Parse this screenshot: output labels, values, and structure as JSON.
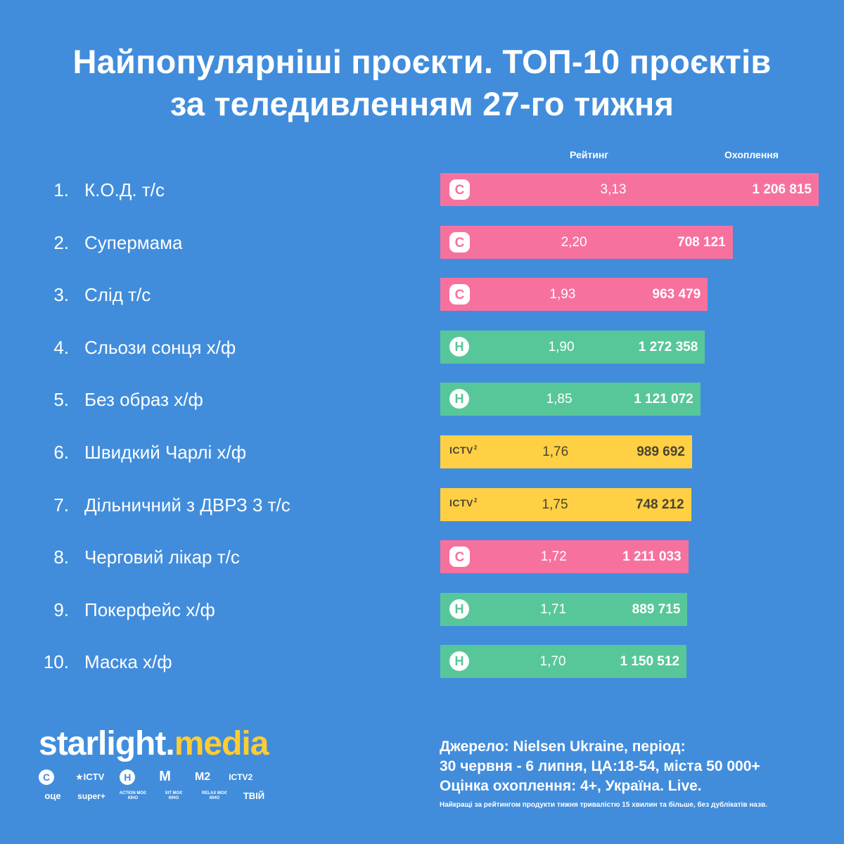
{
  "title": {
    "line1": "Найпопулярніші проєкти. ТОП-10 проєктів",
    "line2": "за теледивленням 27-го тижня"
  },
  "headers": {
    "rating": "Рейтинг",
    "reach": "Охоплення"
  },
  "colors": {
    "background": "#418ddc",
    "channel_c": "#f7719f",
    "channel_h": "#57c79a",
    "channel_ictv2": "#ffd044"
  },
  "chart_data": {
    "type": "bar",
    "orientation": "horizontal",
    "categories": [
      "К.О.Д. т/с",
      "Супермама",
      "Слід т/с",
      "Сльози сонця х/ф",
      "Без образ х/ф",
      "Швидкий Чарлі х/ф",
      "Дільничний з ДВРЗ 3 т/с",
      "Черговий лікар т/с",
      "Покерфейс х/ф",
      "Маска х/ф"
    ],
    "ranks": [
      "1.",
      "2.",
      "3.",
      "4.",
      "5.",
      "6.",
      "7.",
      "8.",
      "9.",
      "10."
    ],
    "series": [
      {
        "name": "Рейтинг",
        "values": [
          3.13,
          2.2,
          1.93,
          1.9,
          1.85,
          1.76,
          1.75,
          1.72,
          1.71,
          1.7
        ],
        "labels": [
          "3,13",
          "2,20",
          "1,93",
          "1,90",
          "1,85",
          "1,76",
          "1,75",
          "1,72",
          "1,71",
          "1,70"
        ]
      },
      {
        "name": "Охоплення",
        "values": [
          1206815,
          708121,
          963479,
          1272358,
          1121072,
          989692,
          748212,
          1211033,
          889715,
          1150512
        ],
        "labels": [
          "1 206 815",
          "708 121",
          "963 479",
          "1 272 358",
          "1 121 072",
          "989 692",
          "748 212",
          "1 211 033",
          "889 715",
          "1 150 512"
        ]
      }
    ],
    "channels": [
      "С",
      "С",
      "С",
      "Н",
      "Н",
      "ICTV2",
      "ICTV2",
      "С",
      "Н",
      "Н"
    ],
    "ylabel": "",
    "xlabel": ""
  },
  "logos": {
    "c_letter": "С",
    "h_letter": "Н",
    "ictv_text": "ICTV",
    "ictv_sup": "2"
  },
  "brand": {
    "part1": "starlight",
    "dot": ".",
    "part2": "media"
  },
  "channel_logos": {
    "row1": [
      "С",
      "ICTV",
      "Н",
      "М",
      "М2",
      "ICTV2"
    ],
    "row2": [
      "оце",
      "super+",
      "ACTION МОЄ КІНО",
      "ХІТ МОЄ КІНО",
      "RELAX МОЄ КІНО",
      "ТВІЙ"
    ]
  },
  "source": {
    "line1": "Джерело: Nielsen Ukraine, період:",
    "line2": "30 червня - 6 липня, ЦА:18-54, міста 50 000+",
    "line3": "Оцінка охоплення: 4+, Україна. Live."
  },
  "footnote": "Найкращі за рейтингом продукти тижня тривалістю 15 хвилин та більше, без дублікатів назв."
}
